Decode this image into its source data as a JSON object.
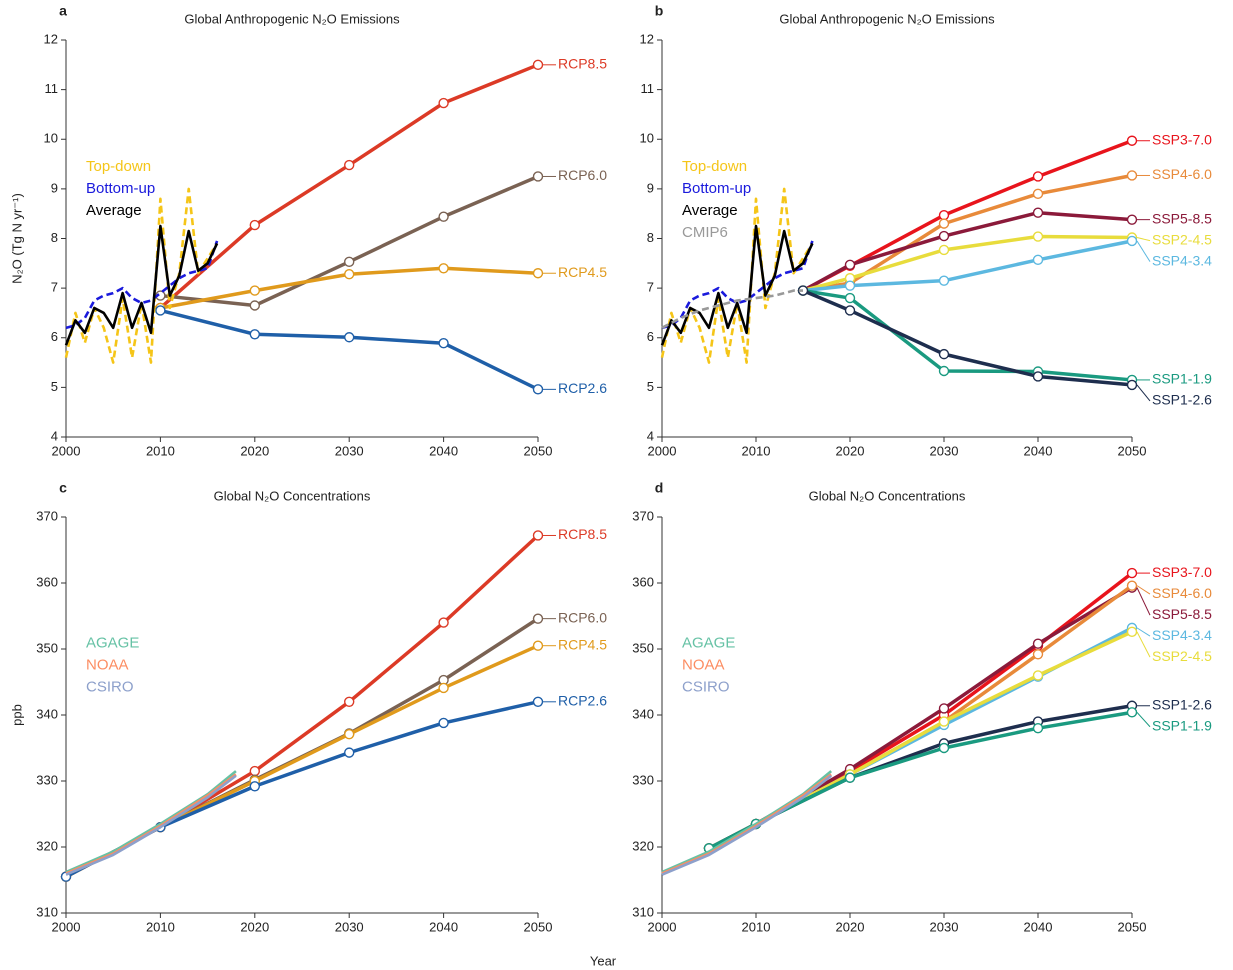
{
  "xlabel": "Year",
  "chart_data": [
    {
      "type": "line",
      "panel": "a",
      "title": "Global Anthropogenic N₂O Emissions",
      "ylabel": "N₂O (Tg N yr⁻¹)",
      "xlim": [
        2000,
        2050
      ],
      "ylim": [
        4,
        12
      ],
      "xticks": [
        2000,
        2010,
        2020,
        2030,
        2040,
        2050
      ],
      "yticks": [
        4,
        5,
        6,
        7,
        8,
        9,
        10,
        11,
        12
      ],
      "series": [
        {
          "name": "RCP8.5",
          "color": "#dc3a26",
          "label": "end",
          "markers": true,
          "x": [
            2010,
            2020,
            2030,
            2040,
            2050
          ],
          "values": [
            6.6,
            8.27,
            9.48,
            10.73,
            11.5
          ]
        },
        {
          "name": "RCP6.0",
          "color": "#7a6253",
          "label": "end",
          "markers": true,
          "x": [
            2010,
            2020,
            2030,
            2040,
            2050
          ],
          "values": [
            6.85,
            6.65,
            7.53,
            8.44,
            9.25
          ]
        },
        {
          "name": "RCP4.5",
          "color": "#e09a1c",
          "label": "end",
          "markers": true,
          "x": [
            2010,
            2020,
            2030,
            2040,
            2050
          ],
          "values": [
            6.6,
            6.95,
            7.28,
            7.4,
            7.3
          ]
        },
        {
          "name": "RCP2.6",
          "color": "#1f5fa8",
          "label": "end",
          "markers": true,
          "x": [
            2010,
            2020,
            2030,
            2040,
            2050
          ],
          "values": [
            6.55,
            6.07,
            6.01,
            5.89,
            4.96
          ]
        },
        {
          "name": "Top-down",
          "color": "#f5c518",
          "label": "legend",
          "style": "dashed",
          "x": [
            2000,
            2001,
            2002,
            2003,
            2004,
            2005,
            2006,
            2007,
            2008,
            2009,
            2010,
            2011,
            2012,
            2013,
            2014,
            2015,
            2016
          ],
          "values": [
            5.6,
            6.5,
            5.9,
            6.6,
            6.2,
            5.5,
            6.8,
            5.6,
            6.7,
            5.5,
            8.8,
            6.6,
            7.3,
            9.0,
            7.3,
            7.6,
            7.9
          ]
        },
        {
          "name": "Bottom-up",
          "color": "#1a1adc",
          "label": "legend",
          "style": "dashed",
          "x": [
            2000,
            2001,
            2002,
            2003,
            2004,
            2005,
            2006,
            2007,
            2008,
            2009,
            2010,
            2011,
            2012,
            2013,
            2014,
            2015,
            2016
          ],
          "values": [
            6.2,
            6.25,
            6.4,
            6.75,
            6.85,
            6.9,
            7.0,
            6.8,
            6.7,
            6.75,
            6.9,
            7.05,
            7.2,
            7.3,
            7.35,
            7.4,
            7.95
          ]
        },
        {
          "name": "Average",
          "color": "#000000",
          "label": "legend",
          "x": [
            2000,
            2001,
            2002,
            2003,
            2004,
            2005,
            2006,
            2007,
            2008,
            2009,
            2010,
            2011,
            2012,
            2013,
            2014,
            2015,
            2016
          ],
          "values": [
            5.85,
            6.35,
            6.1,
            6.6,
            6.5,
            6.2,
            6.9,
            6.2,
            6.7,
            6.1,
            8.25,
            6.85,
            7.25,
            8.15,
            7.35,
            7.5,
            7.9
          ]
        }
      ]
    },
    {
      "type": "line",
      "panel": "b",
      "title": "Global Anthropogenic N₂O Emissions",
      "xlim": [
        2000,
        2050
      ],
      "ylim": [
        4,
        12
      ],
      "xticks": [
        2000,
        2010,
        2020,
        2030,
        2040,
        2050
      ],
      "yticks": [
        4,
        5,
        6,
        7,
        8,
        9,
        10,
        11,
        12
      ],
      "series": [
        {
          "name": "SSP3-7.0",
          "color": "#e8141c",
          "label": "end",
          "markers": true,
          "x": [
            2015,
            2020,
            2030,
            2040,
            2050
          ],
          "values": [
            6.95,
            7.45,
            8.47,
            9.25,
            9.97
          ]
        },
        {
          "name": "SSP4-6.0",
          "color": "#e88a3a",
          "label": "end",
          "markers": true,
          "x": [
            2015,
            2020,
            2030,
            2040,
            2050
          ],
          "values": [
            6.95,
            7.1,
            8.3,
            8.9,
            9.27
          ]
        },
        {
          "name": "SSP5-8.5",
          "color": "#8b1a3a",
          "label": "end",
          "markers": true,
          "x": [
            2015,
            2020,
            2030,
            2040,
            2050
          ],
          "values": [
            6.95,
            7.47,
            8.05,
            8.52,
            8.38
          ]
        },
        {
          "name": "SSP2-4.5",
          "color": "#e8dc3c",
          "label": "end",
          "markers": true,
          "x": [
            2015,
            2020,
            2030,
            2040,
            2050
          ],
          "values": [
            6.95,
            7.2,
            7.77,
            8.04,
            8.02
          ]
        },
        {
          "name": "SSP4-3.4",
          "color": "#5cb8e0",
          "label": "end",
          "markers": true,
          "x": [
            2015,
            2020,
            2030,
            2040,
            2050
          ],
          "values": [
            6.95,
            7.05,
            7.15,
            7.57,
            7.95
          ]
        },
        {
          "name": "SSP1-1.9",
          "color": "#1a9a80",
          "label": "end",
          "markers": true,
          "x": [
            2015,
            2020,
            2030,
            2040,
            2050
          ],
          "values": [
            6.95,
            6.8,
            5.33,
            5.32,
            5.15
          ]
        },
        {
          "name": "SSP1-2.6",
          "color": "#1e2e4e",
          "label": "end",
          "markers": true,
          "x": [
            2015,
            2020,
            2030,
            2040,
            2050
          ],
          "values": [
            6.95,
            6.55,
            5.67,
            5.22,
            5.05
          ]
        },
        {
          "name": "Top-down",
          "color": "#f5c518",
          "label": "legend",
          "style": "dashed",
          "x": [
            2000,
            2001,
            2002,
            2003,
            2004,
            2005,
            2006,
            2007,
            2008,
            2009,
            2010,
            2011,
            2012,
            2013,
            2014,
            2015,
            2016
          ],
          "values": [
            5.6,
            6.5,
            5.9,
            6.6,
            6.2,
            5.5,
            6.8,
            5.6,
            6.7,
            5.5,
            8.8,
            6.6,
            7.3,
            9.0,
            7.3,
            7.6,
            7.9
          ]
        },
        {
          "name": "Bottom-up",
          "color": "#1a1adc",
          "label": "legend",
          "style": "dashed",
          "x": [
            2000,
            2001,
            2002,
            2003,
            2004,
            2005,
            2006,
            2007,
            2008,
            2009,
            2010,
            2011,
            2012,
            2013,
            2014,
            2015,
            2016
          ],
          "values": [
            6.2,
            6.25,
            6.4,
            6.75,
            6.85,
            6.9,
            7.0,
            6.8,
            6.7,
            6.75,
            6.9,
            7.05,
            7.2,
            7.3,
            7.35,
            7.4,
            7.95
          ]
        },
        {
          "name": "Average",
          "color": "#000000",
          "label": "legend",
          "x": [
            2000,
            2001,
            2002,
            2003,
            2004,
            2005,
            2006,
            2007,
            2008,
            2009,
            2010,
            2011,
            2012,
            2013,
            2014,
            2015,
            2016
          ],
          "values": [
            5.85,
            6.35,
            6.1,
            6.6,
            6.5,
            6.2,
            6.9,
            6.2,
            6.7,
            6.1,
            8.25,
            6.85,
            7.25,
            8.15,
            7.35,
            7.5,
            7.9
          ]
        },
        {
          "name": "CMIP6",
          "color": "#999999",
          "label": "legend",
          "style": "dashed",
          "x": [
            2000,
            2002,
            2004,
            2006,
            2008,
            2010,
            2012,
            2014,
            2015
          ],
          "values": [
            6.2,
            6.4,
            6.55,
            6.65,
            6.75,
            6.8,
            6.85,
            6.95,
            6.95
          ]
        }
      ]
    },
    {
      "type": "line",
      "panel": "c",
      "title": "Global N₂O Concentrations",
      "ylabel": "ppb",
      "xlim": [
        2000,
        2050
      ],
      "ylim": [
        310,
        370
      ],
      "xticks": [
        2000,
        2010,
        2020,
        2030,
        2040,
        2050
      ],
      "yticks": [
        310,
        320,
        330,
        340,
        350,
        360,
        370
      ],
      "series": [
        {
          "name": "RCP8.5",
          "color": "#dc3a26",
          "label": "end",
          "markers": true,
          "x": [
            2000,
            2010,
            2020,
            2030,
            2040,
            2050
          ],
          "values": [
            315.5,
            323,
            331.5,
            342,
            354,
            367.2
          ]
        },
        {
          "name": "RCP6.0",
          "color": "#7a6253",
          "label": "end",
          "markers": true,
          "x": [
            2000,
            2010,
            2020,
            2030,
            2040,
            2050
          ],
          "values": [
            315.5,
            323,
            330.2,
            337.2,
            345.3,
            354.6
          ]
        },
        {
          "name": "RCP4.5",
          "color": "#e09a1c",
          "label": "end",
          "markers": true,
          "x": [
            2000,
            2010,
            2020,
            2030,
            2040,
            2050
          ],
          "values": [
            315.5,
            323,
            330,
            337.1,
            344.1,
            350.5
          ]
        },
        {
          "name": "RCP2.6",
          "color": "#1f5fa8",
          "label": "end",
          "markers": true,
          "x": [
            2000,
            2010,
            2020,
            2030,
            2040,
            2050
          ],
          "values": [
            315.5,
            323,
            329.2,
            334.3,
            338.8,
            342
          ]
        },
        {
          "name": "AGAGE",
          "color": "#66c2a5",
          "label": "legend",
          "x": [
            2000,
            2005,
            2010,
            2015,
            2018
          ],
          "values": [
            316.2,
            319.3,
            323.5,
            328,
            331.5
          ]
        },
        {
          "name": "NOAA",
          "color": "#fc8d62",
          "label": "legend",
          "x": [
            2000,
            2005,
            2010,
            2015,
            2018
          ],
          "values": [
            316,
            319,
            323.2,
            327.8,
            331
          ]
        },
        {
          "name": "CSIRO",
          "color": "#8da0cb",
          "label": "legend",
          "x": [
            2000,
            2005,
            2010,
            2015,
            2018
          ],
          "values": [
            315.8,
            318.8,
            323,
            327.5,
            330.8
          ]
        }
      ]
    },
    {
      "type": "line",
      "panel": "d",
      "title": "Global N₂O Concentrations",
      "xlim": [
        2000,
        2050
      ],
      "ylim": [
        310,
        370
      ],
      "xticks": [
        2000,
        2010,
        2020,
        2030,
        2040,
        2050
      ],
      "yticks": [
        310,
        320,
        330,
        340,
        350,
        360,
        370
      ],
      "series": [
        {
          "name": "SSP3-7.0",
          "color": "#e8141c",
          "label": "end",
          "markers": true,
          "x": [
            2005,
            2010,
            2020,
            2030,
            2040,
            2050
          ],
          "values": [
            319.8,
            323.5,
            331.5,
            340,
            350.5,
            361.5
          ]
        },
        {
          "name": "SSP5-8.5",
          "color": "#8b1a3a",
          "label": "end",
          "markers": true,
          "x": [
            2005,
            2010,
            2020,
            2030,
            2040,
            2050
          ],
          "values": [
            319.8,
            323.5,
            331.8,
            341,
            350.8,
            359.3
          ]
        },
        {
          "name": "SSP4-6.0",
          "color": "#e88a3a",
          "label": "end",
          "markers": true,
          "x": [
            2005,
            2010,
            2020,
            2030,
            2040,
            2050
          ],
          "values": [
            319.8,
            323.5,
            331,
            339,
            349.2,
            359.6
          ]
        },
        {
          "name": "SSP4-3.4",
          "color": "#5cb8e0",
          "label": "end",
          "markers": true,
          "x": [
            2005,
            2010,
            2020,
            2030,
            2040,
            2050
          ],
          "values": [
            319.8,
            323.5,
            331,
            338.5,
            345.8,
            353.2
          ]
        },
        {
          "name": "SSP2-4.5",
          "color": "#e8dc3c",
          "label": "end",
          "markers": true,
          "x": [
            2005,
            2010,
            2020,
            2030,
            2040,
            2050
          ],
          "values": [
            319.8,
            323.5,
            331,
            339,
            346,
            352.6
          ]
        },
        {
          "name": "SSP1-2.6",
          "color": "#1e2e4e",
          "label": "end",
          "markers": true,
          "x": [
            2005,
            2010,
            2020,
            2030,
            2040,
            2050
          ],
          "values": [
            319.8,
            323.5,
            330.5,
            335.7,
            339,
            341.4
          ]
        },
        {
          "name": "SSP1-1.9",
          "color": "#1a9a80",
          "label": "end",
          "markers": true,
          "x": [
            2005,
            2010,
            2020,
            2030,
            2040,
            2050
          ],
          "values": [
            319.8,
            323.5,
            330.5,
            335,
            338,
            340.4
          ]
        },
        {
          "name": "AGAGE",
          "color": "#66c2a5",
          "label": "legend",
          "x": [
            2000,
            2005,
            2010,
            2015,
            2018
          ],
          "values": [
            316.2,
            319.3,
            323.5,
            328,
            331.5
          ]
        },
        {
          "name": "NOAA",
          "color": "#fc8d62",
          "label": "legend",
          "x": [
            2000,
            2005,
            2010,
            2015,
            2018
          ],
          "values": [
            316,
            319,
            323.2,
            327.8,
            331
          ]
        },
        {
          "name": "CSIRO",
          "color": "#8da0cb",
          "label": "legend",
          "x": [
            2000,
            2005,
            2010,
            2015,
            2018
          ],
          "values": [
            315.8,
            318.8,
            323,
            327.5,
            330.8
          ]
        }
      ]
    }
  ]
}
